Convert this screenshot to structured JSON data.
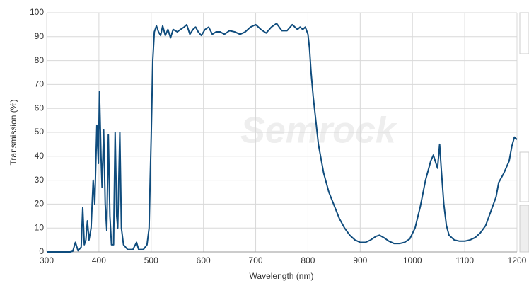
{
  "chart_data": {
    "type": "line",
    "xlabel": "Wavelength (nm)",
    "ylabel": "Transmission (%)",
    "watermark": "Semrock",
    "xlim": [
      300,
      1200
    ],
    "ylim": [
      0,
      100
    ],
    "xticks": [
      300,
      400,
      500,
      600,
      700,
      800,
      900,
      1000,
      1100,
      1200
    ],
    "yticks": [
      0,
      10,
      20,
      30,
      40,
      50,
      60,
      70,
      80,
      90,
      100
    ],
    "grid": true,
    "x": [
      300,
      345,
      350,
      355,
      360,
      366,
      369,
      372,
      375,
      378,
      381,
      385,
      389,
      392,
      396,
      399,
      401,
      404,
      406,
      409,
      412,
      415,
      418,
      421,
      424,
      428,
      431,
      434,
      436,
      440,
      443,
      447,
      455,
      465,
      472,
      476,
      485,
      492,
      496,
      498,
      500,
      503,
      506,
      510,
      514,
      518,
      522,
      527,
      532,
      537,
      542,
      550,
      556,
      563,
      568,
      574,
      580,
      585,
      590,
      596,
      603,
      610,
      617,
      624,
      632,
      640,
      650,
      660,
      670,
      680,
      690,
      700,
      710,
      720,
      730,
      740,
      750,
      760,
      770,
      780,
      785,
      790,
      795,
      800,
      803,
      806,
      810,
      815,
      820,
      830,
      840,
      850,
      860,
      870,
      880,
      890,
      900,
      910,
      920,
      930,
      937,
      945,
      955,
      965,
      975,
      985,
      995,
      1005,
      1015,
      1025,
      1035,
      1040,
      1045,
      1048,
      1052,
      1055,
      1060,
      1065,
      1070,
      1080,
      1090,
      1100,
      1110,
      1120,
      1130,
      1140,
      1150,
      1160,
      1165,
      1175,
      1185,
      1190,
      1195,
      1200
    ],
    "series": [
      {
        "color": "#0f4c7d",
        "values": [
          0,
          0,
          0.3,
          4,
          0.5,
          2,
          18.5,
          3,
          5,
          13,
          5,
          10,
          30,
          20,
          53,
          37,
          67,
          40,
          27,
          51,
          20,
          9,
          49,
          15,
          3,
          3,
          50,
          15,
          10,
          50,
          10,
          3,
          1,
          1,
          4,
          1,
          1,
          3,
          10,
          30,
          48,
          80,
          92,
          94.5,
          92,
          90.5,
          94.5,
          90.5,
          93,
          89.5,
          93,
          92,
          93,
          94,
          95,
          91,
          93,
          94,
          92,
          90.5,
          93,
          94,
          91,
          92,
          92,
          91,
          92.5,
          92,
          91,
          92,
          94,
          95,
          93,
          91.5,
          94,
          95.5,
          92.5,
          92.5,
          95,
          93,
          94,
          93,
          94,
          91,
          85,
          75,
          65,
          55,
          45,
          33,
          25,
          19.5,
          14,
          10,
          7,
          5,
          4,
          4,
          5,
          6.5,
          7,
          6,
          4.5,
          3.5,
          3.5,
          4,
          5.5,
          10,
          19,
          30,
          38,
          40.5,
          37,
          35,
          45,
          35,
          20,
          11,
          7,
          5,
          4.5,
          4.5,
          5,
          6,
          8,
          11,
          17,
          23,
          29,
          33,
          38,
          44,
          48,
          47
        ]
      }
    ]
  }
}
